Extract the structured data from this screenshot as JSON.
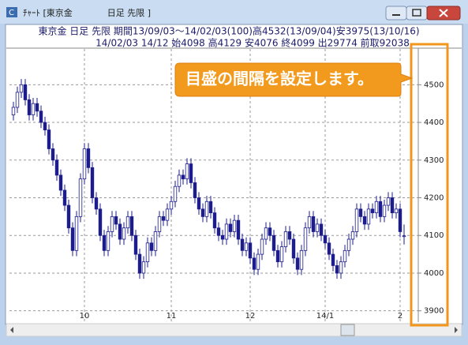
{
  "window": {
    "title": "ﾁｬｰﾄ [東京金　　　　日足 先限 ]"
  },
  "header": {
    "line1": "東京金 日足 先限 期間13/09/03～14/02/03(100)高4532(13/09/04)安3975(13/10/16)",
    "line2": "14/02/03 14/12 始4098 高4129 安4076 終4099 出29774 前取92038"
  },
  "callout": {
    "text": "目盛の間隔を設定します。"
  },
  "chart": {
    "type": "candlestick",
    "up_color": "#ffffff",
    "down_color": "#1c1c8c",
    "edge_color": "#1c1c8c",
    "ylim": [
      3870,
      4595
    ],
    "yticks": [
      3900,
      4000,
      4100,
      4200,
      4300,
      4400,
      4500
    ],
    "grid": true,
    "categories": [
      null,
      null,
      null,
      null,
      null,
      null,
      null,
      null,
      null,
      null,
      null,
      null,
      null,
      null,
      null,
      null,
      null,
      null,
      "10",
      null,
      null,
      null,
      null,
      null,
      null,
      null,
      null,
      null,
      null,
      null,
      null,
      null,
      null,
      null,
      null,
      null,
      null,
      null,
      null,
      null,
      "11",
      null,
      null,
      null,
      null,
      null,
      null,
      null,
      null,
      null,
      null,
      null,
      null,
      null,
      null,
      null,
      null,
      null,
      null,
      null,
      "12",
      null,
      null,
      null,
      null,
      null,
      null,
      null,
      null,
      null,
      null,
      null,
      null,
      null,
      null,
      null,
      null,
      null,
      null,
      "14/1",
      null,
      null,
      null,
      null,
      null,
      null,
      null,
      null,
      null,
      null,
      null,
      null,
      null,
      null,
      null,
      null,
      null,
      null,
      "2",
      null
    ],
    "candles": [
      [
        4420,
        4455,
        4405,
        4440
      ],
      [
        4440,
        4495,
        4425,
        4480
      ],
      [
        4480,
        4515,
        4465,
        4500
      ],
      [
        4500,
        4515,
        4445,
        4460
      ],
      [
        4460,
        4475,
        4405,
        4420
      ],
      [
        4420,
        4465,
        4405,
        4450
      ],
      [
        4450,
        4465,
        4415,
        4430
      ],
      [
        4430,
        4445,
        4385,
        4400
      ],
      [
        4400,
        4415,
        4365,
        4380
      ],
      [
        4380,
        4395,
        4315,
        4330
      ],
      [
        4330,
        4345,
        4285,
        4300
      ],
      [
        4300,
        4315,
        4245,
        4260
      ],
      [
        4260,
        4275,
        4205,
        4220
      ],
      [
        4220,
        4235,
        4165,
        4180
      ],
      [
        4180,
        4195,
        4105,
        4120
      ],
      [
        4120,
        4135,
        4045,
        4060
      ],
      [
        4060,
        4165,
        4045,
        4150
      ],
      [
        4150,
        4265,
        4135,
        4250
      ],
      [
        4250,
        4345,
        4235,
        4330
      ],
      [
        4330,
        4345,
        4265,
        4280
      ],
      [
        4280,
        4295,
        4185,
        4200
      ],
      [
        4200,
        4215,
        4155,
        4170
      ],
      [
        4170,
        4185,
        4085,
        4100
      ],
      [
        4100,
        4115,
        4045,
        4060
      ],
      [
        4060,
        4125,
        4045,
        4110
      ],
      [
        4110,
        4165,
        4095,
        4150
      ],
      [
        4150,
        4165,
        4115,
        4130
      ],
      [
        4130,
        4145,
        4075,
        4090
      ],
      [
        4090,
        4135,
        4075,
        4120
      ],
      [
        4120,
        4165,
        4105,
        4150
      ],
      [
        4150,
        4165,
        4085,
        4100
      ],
      [
        4100,
        4115,
        4035,
        4050
      ],
      [
        4050,
        4065,
        3985,
        4000
      ],
      [
        4000,
        4045,
        3985,
        4030
      ],
      [
        4030,
        4095,
        4015,
        4080
      ],
      [
        4080,
        4095,
        4045,
        4060
      ],
      [
        4060,
        4125,
        4045,
        4110
      ],
      [
        4110,
        4165,
        4095,
        4150
      ],
      [
        4150,
        4165,
        4125,
        4140
      ],
      [
        4140,
        4185,
        4125,
        4170
      ],
      [
        4170,
        4205,
        4155,
        4190
      ],
      [
        4190,
        4245,
        4175,
        4230
      ],
      [
        4230,
        4275,
        4215,
        4260
      ],
      [
        4260,
        4275,
        4235,
        4250
      ],
      [
        4250,
        4305,
        4235,
        4290
      ],
      [
        4290,
        4305,
        4225,
        4240
      ],
      [
        4240,
        4255,
        4185,
        4200
      ],
      [
        4200,
        4215,
        4155,
        4170
      ],
      [
        4170,
        4185,
        4135,
        4150
      ],
      [
        4150,
        4205,
        4135,
        4190
      ],
      [
        4190,
        4205,
        4145,
        4160
      ],
      [
        4160,
        4175,
        4105,
        4120
      ],
      [
        4120,
        4135,
        4085,
        4100
      ],
      [
        4100,
        4115,
        4075,
        4090
      ],
      [
        4090,
        4145,
        4075,
        4130
      ],
      [
        4130,
        4145,
        4095,
        4110
      ],
      [
        4110,
        4155,
        4095,
        4140
      ],
      [
        4140,
        4155,
        4075,
        4090
      ],
      [
        4090,
        4105,
        4045,
        4060
      ],
      [
        4060,
        4095,
        4045,
        4080
      ],
      [
        4080,
        4095,
        4025,
        4040
      ],
      [
        4040,
        4055,
        3995,
        4010
      ],
      [
        4010,
        4065,
        3995,
        4050
      ],
      [
        4050,
        4105,
        4035,
        4090
      ],
      [
        4090,
        4135,
        4075,
        4120
      ],
      [
        4120,
        4135,
        4085,
        4100
      ],
      [
        4100,
        4115,
        4045,
        4060
      ],
      [
        4060,
        4075,
        4015,
        4030
      ],
      [
        4030,
        4085,
        4015,
        4070
      ],
      [
        4070,
        4125,
        4055,
        4110
      ],
      [
        4110,
        4125,
        4075,
        4090
      ],
      [
        4090,
        4105,
        4025,
        4040
      ],
      [
        4040,
        4055,
        3995,
        4010
      ],
      [
        4010,
        4075,
        3995,
        4060
      ],
      [
        4060,
        4135,
        4045,
        4120
      ],
      [
        4120,
        4165,
        4105,
        4150
      ],
      [
        4150,
        4165,
        4095,
        4110
      ],
      [
        4110,
        4145,
        4095,
        4130
      ],
      [
        4130,
        4145,
        4085,
        4100
      ],
      [
        4100,
        4115,
        4065,
        4080
      ],
      [
        4080,
        4095,
        4035,
        4050
      ],
      [
        4050,
        4065,
        4005,
        4020
      ],
      [
        4020,
        4035,
        3985,
        4000
      ],
      [
        4000,
        4045,
        3985,
        4030
      ],
      [
        4030,
        4075,
        4015,
        4060
      ],
      [
        4060,
        4105,
        4045,
        4090
      ],
      [
        4090,
        4125,
        4075,
        4110
      ],
      [
        4110,
        4185,
        4095,
        4170
      ],
      [
        4170,
        4185,
        4135,
        4150
      ],
      [
        4150,
        4165,
        4115,
        4130
      ],
      [
        4130,
        4185,
        4115,
        4170
      ],
      [
        4170,
        4185,
        4145,
        4160
      ],
      [
        4160,
        4205,
        4145,
        4190
      ],
      [
        4190,
        4205,
        4135,
        4150
      ],
      [
        4150,
        4195,
        4135,
        4180
      ],
      [
        4180,
        4215,
        4165,
        4200
      ],
      [
        4200,
        4215,
        4145,
        4160
      ],
      [
        4160,
        4185,
        4145,
        4170
      ],
      [
        4170,
        4185,
        4095,
        4110
      ],
      [
        4098,
        4129,
        4076,
        4099
      ]
    ]
  }
}
